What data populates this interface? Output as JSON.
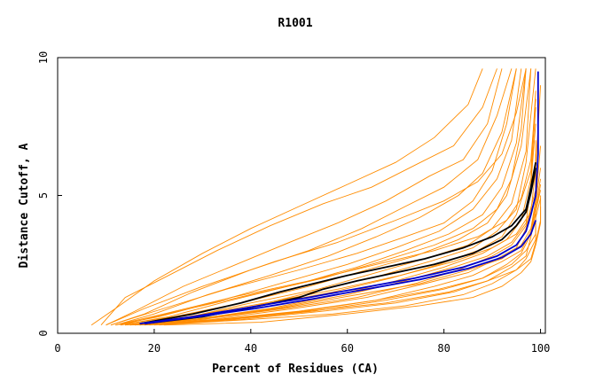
{
  "chart_data": {
    "type": "line",
    "title": "R1001",
    "xlabel": "Percent of Residues (CA)",
    "ylabel": "Distance Cutoff, A",
    "xlim": [
      0,
      101
    ],
    "ylim": [
      0,
      10
    ],
    "xticks": [
      0,
      20,
      40,
      60,
      80,
      100
    ],
    "yticks": [
      0,
      5,
      10
    ],
    "grid": false,
    "colors": {
      "background_models": "#ff8c00",
      "highlight_a": "#000000",
      "highlight_b": "#0000cc",
      "frame": "#000000"
    },
    "series": [
      {
        "color": "#ff8c00",
        "x": [
          7,
          12,
          20,
          30,
          40,
          50,
          60,
          70,
          78,
          85,
          88
        ],
        "y": [
          0.3,
          0.9,
          1.9,
          2.9,
          3.8,
          4.6,
          5.4,
          6.2,
          7.1,
          8.3,
          9.6
        ]
      },
      {
        "color": "#ff8c00",
        "x": [
          9,
          14,
          23,
          33,
          44,
          55,
          65,
          74,
          82,
          88,
          91
        ],
        "y": [
          0.3,
          1.3,
          2.1,
          3.0,
          3.9,
          4.7,
          5.3,
          6.1,
          6.8,
          8.2,
          9.6
        ]
      },
      {
        "color": "#ff8c00",
        "x": [
          10,
          16,
          26,
          37,
          48,
          58,
          68,
          77,
          84,
          89,
          92
        ],
        "y": [
          0.3,
          0.8,
          1.7,
          2.5,
          3.3,
          4.0,
          4.8,
          5.7,
          6.3,
          7.6,
          9.6
        ]
      },
      {
        "color": "#ff8c00",
        "x": [
          11,
          18,
          28,
          40,
          52,
          63,
          72,
          80,
          87,
          91,
          94
        ],
        "y": [
          0.3,
          0.7,
          1.5,
          2.3,
          3.0,
          3.8,
          4.6,
          5.3,
          6.3,
          7.9,
          9.6
        ]
      },
      {
        "color": "#ff8c00",
        "x": [
          12,
          20,
          31,
          44,
          56,
          66,
          75,
          83,
          88,
          92,
          95
        ],
        "y": [
          0.3,
          0.7,
          1.4,
          2.1,
          2.8,
          3.5,
          4.2,
          5.0,
          5.8,
          7.3,
          9.6
        ]
      },
      {
        "color": "#ff8c00",
        "x": [
          12,
          21,
          34,
          48,
          60,
          70,
          79,
          86,
          91,
          94,
          96
        ],
        "y": [
          0.3,
          0.6,
          1.2,
          1.9,
          2.5,
          3.1,
          3.7,
          4.5,
          5.6,
          7.0,
          9.6
        ]
      },
      {
        "color": "#ff8c00",
        "x": [
          13,
          23,
          36,
          50,
          62,
          72,
          81,
          88,
          92,
          95,
          97
        ],
        "y": [
          0.3,
          0.6,
          1.2,
          1.8,
          2.4,
          3.0,
          3.6,
          4.3,
          5.3,
          6.9,
          9.6
        ]
      },
      {
        "color": "#ff8c00",
        "x": [
          13,
          24,
          38,
          52,
          64,
          74,
          83,
          89,
          93,
          96,
          98
        ],
        "y": [
          0.3,
          0.6,
          1.1,
          1.7,
          2.3,
          2.8,
          3.4,
          4.0,
          5.0,
          6.8,
          9.6
        ]
      },
      {
        "color": "#ff8c00",
        "x": [
          14,
          25,
          40,
          54,
          66,
          76,
          85,
          90,
          94,
          97,
          98
        ],
        "y": [
          0.3,
          0.5,
          1.1,
          1.6,
          2.2,
          2.7,
          3.2,
          3.8,
          4.7,
          6.6,
          9.6
        ]
      },
      {
        "color": "#ff8c00",
        "x": [
          14,
          26,
          41,
          55,
          67,
          77,
          86,
          91,
          95,
          97,
          99
        ],
        "y": [
          0.3,
          0.5,
          1.0,
          1.6,
          2.1,
          2.6,
          3.1,
          3.7,
          4.5,
          6.2,
          9.6
        ]
      },
      {
        "color": "#ff8c00",
        "x": [
          15,
          27,
          42,
          57,
          69,
          79,
          87,
          92,
          95,
          98,
          99
        ],
        "y": [
          0.3,
          0.5,
          1.0,
          1.5,
          2.0,
          2.5,
          3.0,
          3.5,
          4.3,
          5.9,
          8.8
        ]
      },
      {
        "color": "#ff8c00",
        "x": [
          15,
          28,
          44,
          58,
          70,
          80,
          88,
          93,
          96,
          98,
          99
        ],
        "y": [
          0.3,
          0.5,
          0.9,
          1.4,
          1.9,
          2.4,
          2.9,
          3.4,
          4.1,
          5.6,
          8.2
        ]
      },
      {
        "color": "#ff8c00",
        "x": [
          16,
          29,
          45,
          60,
          72,
          82,
          89,
          94,
          97,
          98,
          99
        ],
        "y": [
          0.3,
          0.5,
          0.9,
          1.4,
          1.9,
          2.4,
          2.8,
          3.3,
          4.0,
          5.4,
          7.6
        ]
      },
      {
        "color": "#ff8c00",
        "x": [
          16,
          30,
          47,
          62,
          74,
          83,
          90,
          94,
          97,
          99,
          99
        ],
        "y": [
          0.3,
          0.5,
          0.9,
          1.3,
          1.8,
          2.3,
          2.8,
          3.2,
          3.9,
          5.2,
          7.0
        ]
      },
      {
        "color": "#ff8c00",
        "x": [
          17,
          32,
          49,
          64,
          76,
          85,
          91,
          95,
          97,
          99,
          99
        ],
        "y": [
          0.3,
          0.5,
          0.9,
          1.3,
          1.8,
          2.2,
          2.7,
          3.1,
          3.8,
          5.0,
          6.5
        ]
      },
      {
        "color": "#ff8c00",
        "x": [
          18,
          34,
          51,
          66,
          78,
          86,
          92,
          96,
          98,
          99,
          100
        ],
        "y": [
          0.3,
          0.5,
          0.8,
          1.2,
          1.7,
          2.1,
          2.6,
          3.0,
          3.7,
          4.8,
          6.0
        ]
      },
      {
        "color": "#ff8c00",
        "x": [
          19,
          36,
          53,
          68,
          80,
          88,
          93,
          96,
          98,
          99,
          100
        ],
        "y": [
          0.3,
          0.5,
          0.8,
          1.2,
          1.6,
          2.0,
          2.5,
          2.9,
          3.6,
          4.6,
          5.6
        ]
      },
      {
        "color": "#ff8c00",
        "x": [
          20,
          38,
          55,
          70,
          82,
          89,
          94,
          97,
          98,
          99,
          100
        ],
        "y": [
          0.3,
          0.5,
          0.8,
          1.1,
          1.5,
          1.9,
          2.4,
          2.8,
          3.5,
          4.4,
          5.2
        ]
      },
      {
        "color": "#ff8c00",
        "x": [
          21,
          40,
          57,
          72,
          84,
          90,
          95,
          97,
          99,
          99,
          100
        ],
        "y": [
          0.3,
          0.5,
          0.7,
          1.0,
          1.4,
          1.8,
          2.3,
          2.7,
          3.4,
          4.2,
          4.9
        ]
      },
      {
        "color": "#ff8c00",
        "x": [
          22,
          42,
          60,
          75,
          86,
          92,
          96,
          98,
          99,
          100,
          100
        ],
        "y": [
          0.3,
          0.4,
          0.7,
          1.0,
          1.3,
          1.7,
          2.2,
          2.6,
          3.2,
          4.0,
          4.6
        ]
      },
      {
        "color": "#ff8c00",
        "x": [
          11,
          22,
          35,
          50,
          62,
          72,
          80,
          86,
          90,
          93,
          95
        ],
        "y": [
          0.3,
          0.9,
          1.6,
          2.3,
          2.9,
          3.5,
          4.0,
          4.8,
          5.9,
          7.6,
          9.6
        ]
      },
      {
        "color": "#ff8c00",
        "x": [
          13,
          25,
          40,
          55,
          67,
          78,
          86,
          91,
          94,
          96,
          97
        ],
        "y": [
          0.3,
          0.8,
          1.4,
          2.0,
          2.6,
          3.2,
          3.8,
          4.5,
          5.6,
          7.4,
          9.6
        ]
      },
      {
        "color": "#ff8c00",
        "x": [
          10,
          18,
          30,
          45,
          58,
          70,
          80,
          87,
          92,
          95,
          97
        ],
        "y": [
          0.3,
          0.9,
          1.7,
          2.6,
          3.3,
          4.1,
          4.8,
          5.5,
          6.5,
          8.0,
          9.6
        ]
      },
      {
        "color": "#ff8c00",
        "x": [
          14,
          27,
          43,
          58,
          71,
          82,
          90,
          95,
          98,
          99,
          100
        ],
        "y": [
          0.3,
          0.6,
          1.1,
          1.6,
          2.1,
          2.6,
          3.1,
          3.6,
          4.4,
          6.0,
          9.0
        ]
      },
      {
        "color": "#ff8c00",
        "x": [
          17,
          33,
          50,
          66,
          79,
          88,
          94,
          97,
          99,
          99,
          100
        ],
        "y": [
          0.3,
          0.5,
          0.8,
          1.2,
          1.6,
          2.0,
          2.5,
          3.0,
          3.6,
          4.4,
          5.4
        ]
      },
      {
        "color": "#ff8c00",
        "x": [
          18,
          35,
          52,
          68,
          81,
          89,
          95,
          98,
          99,
          100,
          100
        ],
        "y": [
          0.3,
          0.5,
          0.8,
          1.1,
          1.5,
          1.9,
          2.3,
          2.7,
          3.3,
          4.1,
          5.0
        ]
      },
      {
        "color": "#ff8c00",
        "x": [
          12,
          22,
          36,
          52,
          66,
          78,
          87,
          93,
          96,
          98,
          99
        ],
        "y": [
          0.3,
          0.7,
          1.3,
          1.9,
          2.5,
          3.0,
          3.5,
          4.1,
          4.9,
          6.3,
          8.5
        ]
      },
      {
        "color": "#ff8c00",
        "x": [
          15,
          29,
          46,
          62,
          75,
          85,
          92,
          96,
          98,
          99,
          100
        ],
        "y": [
          0.3,
          0.5,
          0.9,
          1.4,
          1.8,
          2.3,
          2.7,
          3.2,
          3.8,
          4.8,
          6.8
        ]
      },
      {
        "color": "#000000",
        "x": [
          18,
          30,
          42,
          50,
          55,
          62,
          70,
          78,
          86,
          92,
          95,
          97,
          98,
          99
        ],
        "y": [
          0.35,
          0.6,
          1.0,
          1.3,
          1.6,
          1.9,
          2.2,
          2.5,
          2.9,
          3.4,
          3.9,
          4.4,
          5.1,
          6.0
        ]
      },
      {
        "color": "#000000",
        "x": [
          17,
          28,
          38,
          46,
          53,
          60,
          68,
          76,
          84,
          90,
          94,
          97,
          98,
          99
        ],
        "y": [
          0.35,
          0.7,
          1.1,
          1.5,
          1.8,
          2.1,
          2.4,
          2.7,
          3.1,
          3.5,
          3.9,
          4.5,
          5.3,
          6.2
        ]
      },
      {
        "color": "#0000cc",
        "x": [
          17,
          28,
          40,
          52,
          63,
          74,
          84,
          91,
          95,
          97,
          98,
          99,
          99.5,
          99.5
        ],
        "y": [
          0.35,
          0.6,
          0.95,
          1.3,
          1.65,
          2.0,
          2.4,
          2.8,
          3.2,
          3.7,
          4.3,
          5.0,
          6.5,
          9.5
        ]
      },
      {
        "color": "#0000cc",
        "x": [
          18,
          29,
          41,
          53,
          64,
          75,
          85,
          92,
          96,
          98,
          99
        ],
        "y": [
          0.35,
          0.6,
          0.9,
          1.25,
          1.6,
          1.95,
          2.35,
          2.75,
          3.15,
          3.6,
          4.1
        ]
      }
    ]
  }
}
